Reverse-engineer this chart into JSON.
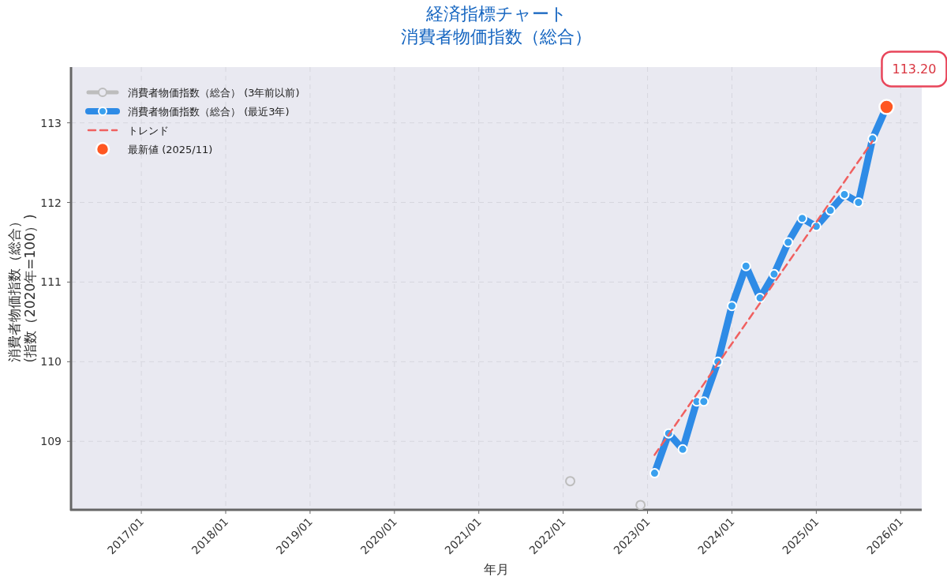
{
  "chart_data": {
    "type": "line",
    "title": "経済指標チャート",
    "subtitle": "消費者物価指数（総合）",
    "xlabel": "年月",
    "ylabel": "消費者物価指数（総合）\n(指数（2020年=100）)",
    "xlim": [
      "2016-03",
      "2026-04"
    ],
    "ylim": [
      108.14,
      113.7
    ],
    "xticks": [
      {
        "value": "2017-01",
        "label": "2017/01"
      },
      {
        "value": "2018-01",
        "label": "2018/01"
      },
      {
        "value": "2019-01",
        "label": "2019/01"
      },
      {
        "value": "2020-01",
        "label": "2020/01"
      },
      {
        "value": "2021-01",
        "label": "2021/01"
      },
      {
        "value": "2022-01",
        "label": "2022/01"
      },
      {
        "value": "2023-01",
        "label": "2023/01"
      },
      {
        "value": "2024-01",
        "label": "2024/01"
      },
      {
        "value": "2025-01",
        "label": "2025/01"
      },
      {
        "value": "2026-01",
        "label": "2026/01"
      }
    ],
    "yticks": [
      109,
      110,
      111,
      112,
      113
    ],
    "grid": true,
    "legend": "top left",
    "series": [
      {
        "name": "消費者物価指数（総合） (3年前以前)",
        "type": "scatter",
        "color": "#bdbdbd",
        "marker": "circle",
        "line_style": "solid",
        "x": [
          "2022-02",
          "2022-12"
        ],
        "values": [
          108.5,
          108.2
        ]
      },
      {
        "name": "消費者物価指数（総合） (最近3年)",
        "color": "#2e8be6",
        "marker": "circle",
        "line_style": "solid",
        "x": [
          "2023-02",
          "2023-04",
          "2023-06",
          "2023-08",
          "2023-09",
          "2023-11",
          "2024-01",
          "2024-03",
          "2024-05",
          "2024-07",
          "2024-09",
          "2024-11",
          "2025-01",
          "2025-03",
          "2025-05",
          "2025-07",
          "2025-09",
          "2025-11"
        ],
        "values": [
          108.6,
          109.1,
          108.9,
          109.5,
          109.5,
          110.0,
          110.7,
          111.2,
          110.8,
          111.1,
          111.5,
          111.8,
          111.7,
          111.9,
          112.1,
          112.0,
          112.8,
          113.2
        ]
      },
      {
        "name": "トレンド",
        "color": "#f06060",
        "marker": "none",
        "line_style": "dashed",
        "x": [
          "2023-02",
          "2025-09"
        ],
        "values": [
          108.83,
          112.77
        ]
      },
      {
        "name": "最新値 (2025/11)",
        "type": "scatter",
        "color": "#ff5722",
        "marker": "circle",
        "x": [
          "2025-11"
        ],
        "values": [
          113.2
        ]
      }
    ],
    "annotations": [
      {
        "text": "113.20",
        "x": "2025-11",
        "y": 113.2
      }
    ]
  }
}
